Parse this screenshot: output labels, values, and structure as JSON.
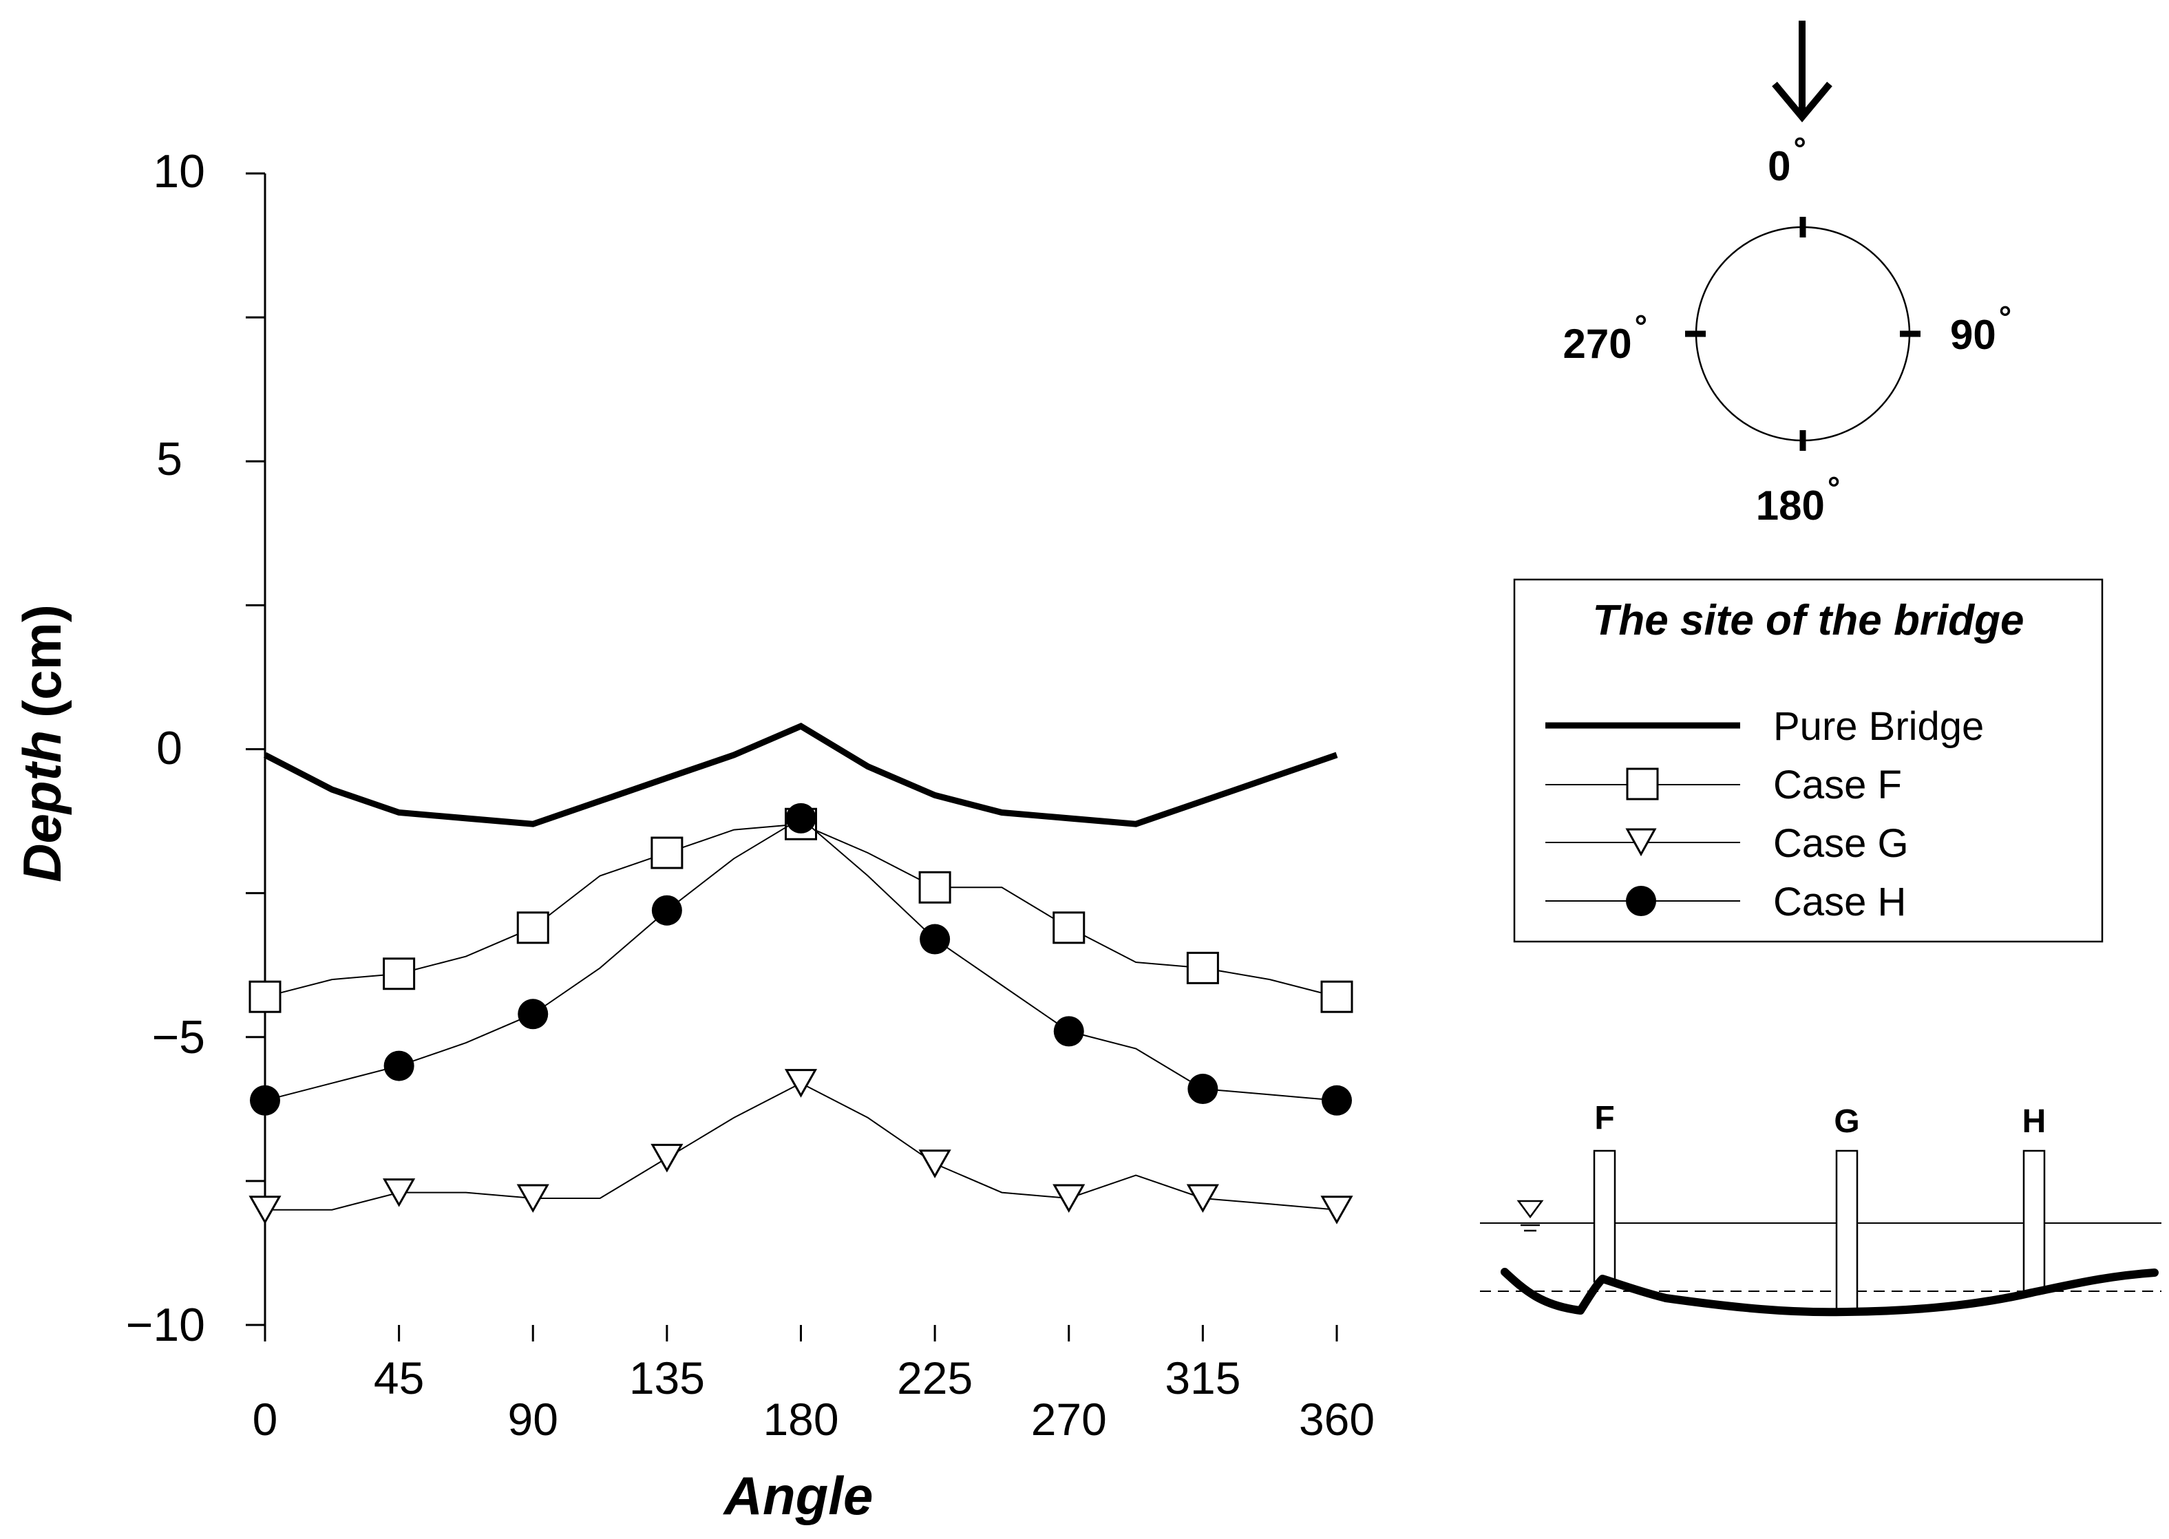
{
  "chart_data": {
    "type": "line",
    "title": "",
    "xlabel": "Angle",
    "ylabel_italic": "Depth",
    "ylabel_unit": "(cm)",
    "xlim": [
      0,
      360
    ],
    "ylim": [
      -10,
      10
    ],
    "x_ticks": [
      0,
      45,
      90,
      135,
      180,
      225,
      270,
      315,
      360
    ],
    "x_tick_labels": [
      "0",
      "45",
      "90",
      "135",
      "180",
      "225",
      "270",
      "315",
      "360"
    ],
    "y_tick_labels": [
      "10",
      "5",
      "0",
      "−10"
    ],
    "y_tick_values": [
      10,
      5,
      0,
      -10
    ],
    "y_minus5_label": "−5",
    "grid": false,
    "series": [
      {
        "name": "Pure Bridge",
        "marker": "none",
        "x": [
          0,
          22.5,
          45,
          67.5,
          90,
          112.5,
          135,
          157.5,
          180,
          202.5,
          225,
          247.5,
          270,
          292.5,
          315,
          337.5,
          360
        ],
        "y": [
          -0.1,
          -0.7,
          -1.1,
          -1.2,
          -1.3,
          -0.9,
          -0.5,
          -0.1,
          0.4,
          -0.3,
          -0.8,
          -1.1,
          -1.2,
          -1.3,
          -0.9,
          -0.5,
          -0.1
        ],
        "marker_x": []
      },
      {
        "name": "Case F",
        "marker": "square",
        "x": [
          0,
          22.5,
          45,
          67.5,
          90,
          112.5,
          135,
          157.5,
          180,
          202.5,
          225,
          247.5,
          270,
          292.5,
          315,
          337.5,
          360
        ],
        "y": [
          -4.3,
          -4.0,
          -3.9,
          -3.6,
          -3.1,
          -2.2,
          -1.8,
          -1.4,
          -1.3,
          -1.8,
          -2.4,
          -2.4,
          -3.1,
          -3.7,
          -3.8,
          -4.0,
          -4.3
        ],
        "marker_x": [
          0,
          45,
          90,
          135,
          180,
          225,
          270,
          315,
          360
        ]
      },
      {
        "name": "Case G",
        "marker": "triangle-down",
        "x": [
          0,
          22.5,
          45,
          67.5,
          90,
          112.5,
          135,
          157.5,
          180,
          202.5,
          225,
          247.5,
          270,
          292.5,
          315,
          337.5,
          360
        ],
        "y": [
          -8.0,
          -8.0,
          -7.7,
          -7.7,
          -7.8,
          -7.8,
          -7.1,
          -6.4,
          -5.8,
          -6.4,
          -7.2,
          -7.7,
          -7.8,
          -7.4,
          -7.8,
          -7.9,
          -8.0
        ],
        "marker_x": [
          0,
          45,
          90,
          135,
          180,
          225,
          270,
          315,
          360
        ]
      },
      {
        "name": "Case H",
        "marker": "filled-circle",
        "x": [
          0,
          22.5,
          45,
          67.5,
          90,
          112.5,
          135,
          157.5,
          180,
          202.5,
          225,
          247.5,
          270,
          292.5,
          315,
          337.5,
          360
        ],
        "y": [
          -6.1,
          -5.8,
          -5.5,
          -5.1,
          -4.6,
          -3.8,
          -2.8,
          -1.9,
          -1.2,
          -2.2,
          -3.3,
          -4.1,
          -4.9,
          -5.2,
          -5.9,
          -6.0,
          -6.1
        ],
        "marker_x": [
          0,
          45,
          90,
          135,
          180,
          225,
          270,
          315,
          360
        ]
      }
    ],
    "legend": {
      "title": "The site of the bridge",
      "position": "right",
      "entries": [
        "Pure Bridge",
        "Case F",
        "Case G",
        "Case H"
      ]
    }
  },
  "compass": {
    "top": "0",
    "right": "90",
    "bottom": "180",
    "left": "270",
    "degree_symbol": "°"
  },
  "site_diagram": {
    "labels": [
      "F",
      "G",
      "H"
    ]
  }
}
